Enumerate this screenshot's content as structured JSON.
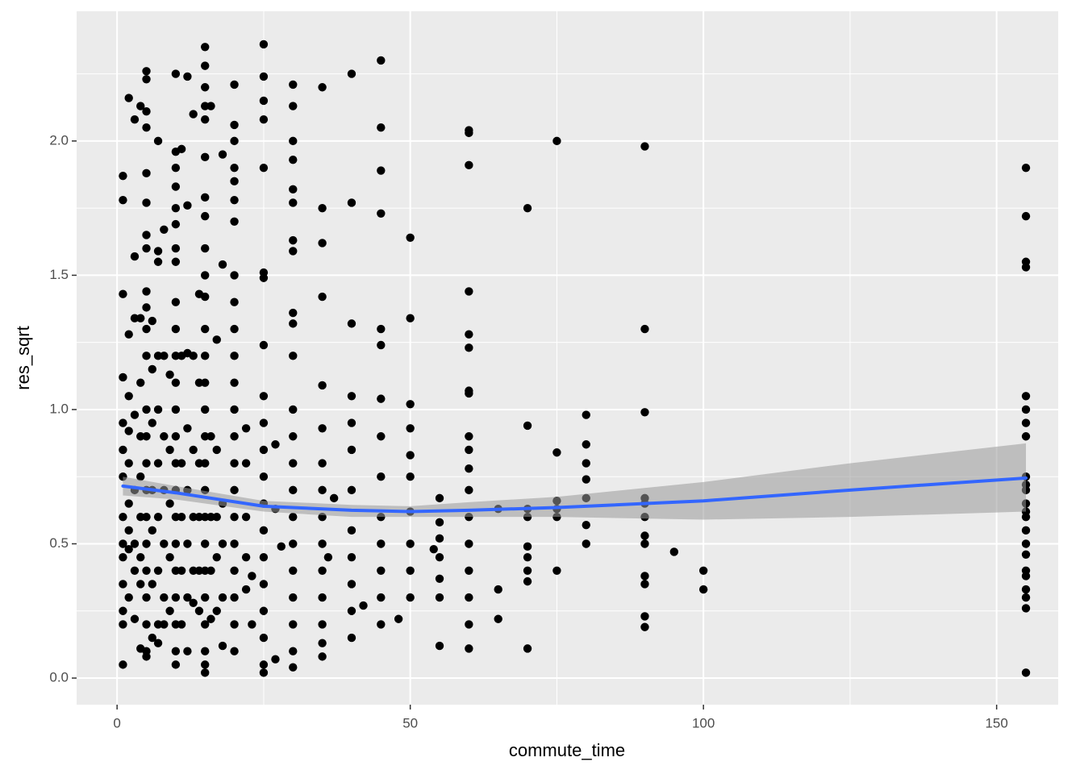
{
  "chart_data": {
    "type": "scatter",
    "x_label": "commute_time",
    "y_label": "res_sqrt",
    "xlim": [
      -6.9,
      160.5
    ],
    "ylim": [
      -0.099,
      2.483
    ],
    "xticks": [
      0,
      50,
      100,
      150
    ],
    "yticks": [
      {
        "value": 0,
        "label": "0.0"
      },
      0.5,
      {
        "value": 1,
        "label": "1.0"
      },
      1.5,
      {
        "value": 2,
        "label": "2.0"
      }
    ],
    "x_minor_grid": [
      25,
      75,
      125
    ],
    "y_minor_grid": [
      0.25,
      0.75,
      1.25,
      1.75,
      2.25
    ],
    "grid": true,
    "color": "#000000",
    "x": [
      1,
      1,
      1,
      1,
      1,
      1,
      1,
      1,
      1,
      1,
      1,
      1,
      1,
      1,
      2,
      2,
      2,
      2,
      2,
      2,
      2,
      2,
      2,
      3,
      3,
      3,
      3,
      3,
      3,
      3,
      3,
      4,
      4,
      4,
      4,
      4,
      4,
      4,
      4,
      4,
      5,
      5,
      5,
      5,
      5,
      5,
      5,
      5,
      5,
      5,
      5,
      5,
      5,
      5,
      5,
      5,
      5,
      5,
      5,
      5,
      5,
      5,
      5,
      6,
      6,
      6,
      6,
      6,
      6,
      6,
      7,
      7,
      7,
      7,
      7,
      7,
      7,
      7,
      7,
      7,
      8,
      8,
      8,
      8,
      8,
      8,
      8,
      9,
      9,
      9,
      9,
      9,
      10,
      10,
      10,
      10,
      10,
      10,
      10,
      10,
      10,
      10,
      10,
      10,
      10,
      10,
      10,
      10,
      10,
      10,
      10,
      10,
      10,
      10,
      10,
      11,
      11,
      11,
      11,
      11,
      11,
      12,
      12,
      12,
      12,
      12,
      12,
      12,
      12,
      13,
      13,
      13,
      13,
      13,
      13,
      14,
      14,
      14,
      14,
      14,
      14,
      15,
      15,
      15,
      15,
      15,
      15,
      15,
      15,
      15,
      15,
      15,
      15,
      15,
      15,
      15,
      15,
      15,
      15,
      15,
      15,
      15,
      15,
      15,
      15,
      15,
      15,
      16,
      16,
      16,
      16,
      16,
      17,
      17,
      17,
      17,
      17,
      18,
      18,
      18,
      18,
      18,
      18,
      20,
      20,
      20,
      20,
      20,
      20,
      20,
      20,
      20,
      20,
      20,
      20,
      20,
      20,
      20,
      20,
      20,
      20,
      20,
      20,
      20,
      20,
      22,
      22,
      22,
      22,
      22,
      23,
      23,
      25,
      25,
      25,
      25,
      25,
      25,
      25,
      25,
      25,
      25,
      25,
      25,
      25,
      25,
      25,
      25,
      25,
      25,
      25,
      25,
      27,
      27,
      27,
      28,
      30,
      30,
      30,
      30,
      30,
      30,
      30,
      30,
      30,
      30,
      30,
      30,
      30,
      30,
      30,
      30,
      30,
      30,
      30,
      30,
      30,
      30,
      35,
      35,
      35,
      35,
      35,
      35,
      35,
      35,
      35,
      35,
      35,
      35,
      35,
      35,
      35,
      36,
      37,
      40,
      40,
      40,
      40,
      40,
      40,
      40,
      40,
      40,
      40,
      40,
      40,
      42,
      45,
      45,
      45,
      45,
      45,
      45,
      45,
      45,
      45,
      45,
      45,
      45,
      45,
      45,
      48,
      50,
      50,
      50,
      50,
      50,
      50,
      50,
      50,
      50,
      50,
      54,
      55,
      55,
      55,
      55,
      55,
      55,
      55,
      60,
      60,
      60,
      60,
      60,
      60,
      60,
      60,
      60,
      60,
      60,
      60,
      60,
      60,
      60,
      60,
      60,
      60,
      65,
      65,
      65,
      70,
      70,
      70,
      70,
      70,
      70,
      70,
      70,
      70,
      75,
      75,
      75,
      75,
      75,
      75,
      80,
      80,
      80,
      80,
      80,
      80,
      80,
      90,
      90,
      90,
      90,
      90,
      90,
      90,
      90,
      90,
      90,
      90,
      90,
      95,
      100,
      100,
      155,
      155,
      155,
      155,
      155,
      155,
      155,
      155,
      155,
      155,
      155,
      155,
      155,
      155,
      155,
      155,
      155,
      155,
      155,
      155,
      155,
      155,
      155
    ],
    "values": [
      1.87,
      1.78,
      1.43,
      1.12,
      0.95,
      0.85,
      0.75,
      0.6,
      0.5,
      0.45,
      0.35,
      0.25,
      0.2,
      0.05,
      2.16,
      1.28,
      1.05,
      0.92,
      0.8,
      0.65,
      0.55,
      0.48,
      0.3,
      2.08,
      1.57,
      1.34,
      0.98,
      0.7,
      0.5,
      0.4,
      0.22,
      2.13,
      1.34,
      1.1,
      0.9,
      0.75,
      0.6,
      0.45,
      0.35,
      0.11,
      2.26,
      2.23,
      2.11,
      2.05,
      1.88,
      1.77,
      1.65,
      1.6,
      1.44,
      1.38,
      1.3,
      1.2,
      1.0,
      0.9,
      0.8,
      0.7,
      0.6,
      0.5,
      0.4,
      0.3,
      0.2,
      0.1,
      0.08,
      1.33,
      1.15,
      0.95,
      0.7,
      0.55,
      0.35,
      0.15,
      2.0,
      1.59,
      1.55,
      1.2,
      1.0,
      0.8,
      0.6,
      0.4,
      0.2,
      0.13,
      1.67,
      1.2,
      0.9,
      0.7,
      0.5,
      0.3,
      0.2,
      1.13,
      0.85,
      0.65,
      0.45,
      0.25,
      2.25,
      1.96,
      1.9,
      1.83,
      1.75,
      1.69,
      1.6,
      1.55,
      1.4,
      1.3,
      1.2,
      1.1,
      1.0,
      0.9,
      0.8,
      0.7,
      0.6,
      0.5,
      0.4,
      0.3,
      0.2,
      0.1,
      0.05,
      1.97,
      1.2,
      0.8,
      0.6,
      0.4,
      0.2,
      2.24,
      1.76,
      1.21,
      0.93,
      0.7,
      0.5,
      0.3,
      0.1,
      2.1,
      1.2,
      0.85,
      0.6,
      0.4,
      0.28,
      1.43,
      1.1,
      0.8,
      0.6,
      0.4,
      0.25,
      2.35,
      2.28,
      2.2,
      2.13,
      2.08,
      1.94,
      1.79,
      1.72,
      1.6,
      1.5,
      1.42,
      1.3,
      1.2,
      1.1,
      1.0,
      0.9,
      0.8,
      0.7,
      0.6,
      0.5,
      0.4,
      0.3,
      0.2,
      0.1,
      0.05,
      0.02,
      2.13,
      0.9,
      0.6,
      0.4,
      0.22,
      1.26,
      0.85,
      0.6,
      0.45,
      0.25,
      1.95,
      1.54,
      0.65,
      0.5,
      0.3,
      0.12,
      2.21,
      2.06,
      2.0,
      1.9,
      1.85,
      1.78,
      1.7,
      1.5,
      1.4,
      1.3,
      1.2,
      1.1,
      1.0,
      0.9,
      0.8,
      0.7,
      0.6,
      0.5,
      0.4,
      0.3,
      0.2,
      0.1,
      0.93,
      0.8,
      0.6,
      0.45,
      0.33,
      0.38,
      0.2,
      2.36,
      2.24,
      2.15,
      2.08,
      1.9,
      1.51,
      1.49,
      1.24,
      1.05,
      0.95,
      0.85,
      0.75,
      0.65,
      0.55,
      0.45,
      0.35,
      0.25,
      0.15,
      0.05,
      0.02,
      0.87,
      0.63,
      0.07,
      0.49,
      2.21,
      2.13,
      2.0,
      1.93,
      1.82,
      1.77,
      1.63,
      1.59,
      1.36,
      1.32,
      1.2,
      1.0,
      0.9,
      0.8,
      0.7,
      0.6,
      0.5,
      0.4,
      0.3,
      0.2,
      0.1,
      0.04,
      2.2,
      1.75,
      1.62,
      1.42,
      1.09,
      0.93,
      0.8,
      0.7,
      0.6,
      0.5,
      0.4,
      0.3,
      0.2,
      0.13,
      0.08,
      0.45,
      0.67,
      2.25,
      1.77,
      1.32,
      1.05,
      0.95,
      0.85,
      0.7,
      0.55,
      0.45,
      0.35,
      0.25,
      0.15,
      0.27,
      2.3,
      2.05,
      1.89,
      1.73,
      1.3,
      1.24,
      1.04,
      0.9,
      0.75,
      0.6,
      0.5,
      0.4,
      0.3,
      0.2,
      0.22,
      1.64,
      1.34,
      1.02,
      0.93,
      0.83,
      0.75,
      0.62,
      0.5,
      0.4,
      0.3,
      0.48,
      0.67,
      0.58,
      0.52,
      0.45,
      0.37,
      0.3,
      0.12,
      2.04,
      2.03,
      1.91,
      1.44,
      1.28,
      1.23,
      1.07,
      1.06,
      0.9,
      0.85,
      0.78,
      0.7,
      0.6,
      0.5,
      0.4,
      0.3,
      0.2,
      0.11,
      0.63,
      0.33,
      0.22,
      1.75,
      0.94,
      0.63,
      0.6,
      0.49,
      0.45,
      0.4,
      0.36,
      0.11,
      2.0,
      0.84,
      0.66,
      0.63,
      0.6,
      0.4,
      0.98,
      0.87,
      0.8,
      0.74,
      0.67,
      0.57,
      0.5,
      1.98,
      1.3,
      0.99,
      0.67,
      0.65,
      0.6,
      0.53,
      0.5,
      0.38,
      0.35,
      0.23,
      0.19,
      0.47,
      0.4,
      0.33,
      1.9,
      1.72,
      1.55,
      1.53,
      1.05,
      1.0,
      0.95,
      0.9,
      0.75,
      0.72,
      0.7,
      0.65,
      0.62,
      0.6,
      0.55,
      0.5,
      0.46,
      0.4,
      0.38,
      0.33,
      0.3,
      0.26,
      0.02
    ],
    "smooth": {
      "color": "#3366FF",
      "band_color": "#999999",
      "x": [
        1,
        10,
        25,
        40,
        50,
        60,
        75,
        100,
        125,
        155
      ],
      "values": [
        0.715,
        0.69,
        0.64,
        0.625,
        0.62,
        0.625,
        0.635,
        0.66,
        0.7,
        0.745
      ],
      "lower": [
        0.68,
        0.665,
        0.62,
        0.6,
        0.6,
        0.6,
        0.6,
        0.59,
        0.6,
        0.62
      ],
      "upper": [
        0.75,
        0.715,
        0.66,
        0.645,
        0.64,
        0.655,
        0.675,
        0.73,
        0.8,
        0.874
      ]
    }
  }
}
